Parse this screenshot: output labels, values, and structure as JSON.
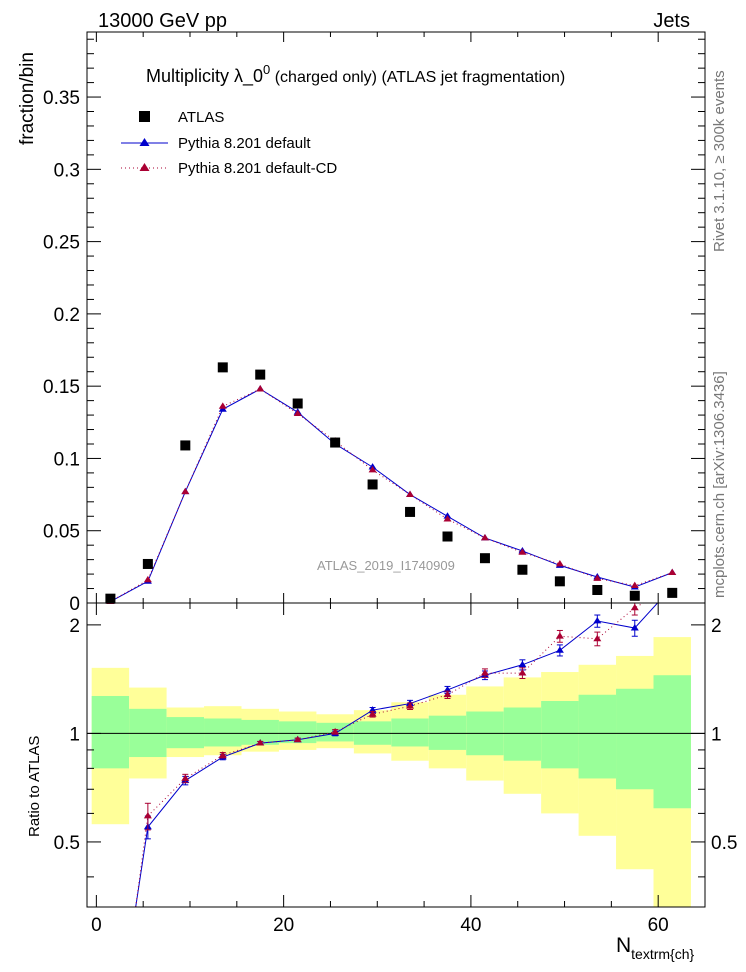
{
  "header": {
    "left": "13000 GeV pp",
    "right": "Jets"
  },
  "side_labels": {
    "rivet": "Rivet 3.1.10, ≥ 300k events",
    "mcplots": "mcplots.cern.ch [arXiv:1306.3436]"
  },
  "watermark": "ATLAS_2019_I1740909",
  "chart_data": {
    "type": "scatter",
    "title": "Multiplicity  λ_0⁰ (charged only) (ATLAS jet fragmentation)",
    "title_main": "Multiplicity  λ_0",
    "title_sup": "0",
    "title_tail": " (charged only) (ATLAS jet fragmentation)",
    "xlabel": "N",
    "xlabel_sub": "textrm{ch}",
    "ylabel": "fraction/bin",
    "ratio_ylabel": "Ratio to ATLAS",
    "xlim": [
      -1,
      65
    ],
    "ylim": [
      0,
      0.395
    ],
    "ratio_ylim": [
      0.33,
      2.3
    ],
    "x_ticks": [
      0,
      20,
      40,
      60
    ],
    "y_ticks": [
      0,
      0.05,
      0.1,
      0.15,
      0.2,
      0.25,
      0.3,
      0.35
    ],
    "y_tick_labels": [
      "0",
      "0.05",
      "0.1",
      "0.15",
      "0.2",
      "0.25",
      "0.3",
      "0.35"
    ],
    "ratio_ticks": [
      0.5,
      1,
      2
    ],
    "ratio_tick_labels": [
      "0.5",
      "1",
      "2"
    ],
    "legend_position": "top-left",
    "bin_edges": [
      -0.5,
      3.5,
      7.5,
      11.5,
      15.5,
      19.5,
      23.5,
      27.5,
      31.5,
      35.5,
      39.5,
      43.5,
      47.5,
      51.5,
      55.5,
      59.5,
      63.5
    ],
    "x": [
      1.5,
      5.5,
      9.5,
      13.5,
      17.5,
      21.5,
      25.5,
      29.5,
      33.5,
      37.5,
      41.5,
      45.5,
      49.5,
      53.5,
      57.5,
      61.5
    ],
    "series": [
      {
        "name": "ATLAS",
        "color": "#000000",
        "marker": "square",
        "values": [
          0.003,
          0.027,
          0.109,
          0.163,
          0.158,
          0.138,
          0.111,
          0.082,
          0.063,
          0.046,
          0.031,
          0.023,
          0.015,
          0.009,
          0.005,
          0.007
        ]
      },
      {
        "name": "Pythia 8.201 default",
        "color": "#0000cc",
        "marker": "triangle",
        "line": "solid",
        "values": [
          0.001,
          0.015,
          0.077,
          0.134,
          0.148,
          0.132,
          0.11,
          0.094,
          0.075,
          0.06,
          0.045,
          0.036,
          0.026,
          0.018,
          0.011,
          0.021
        ],
        "ratio": [
          0.33,
          0.55,
          0.74,
          0.86,
          0.94,
          0.96,
          1.0,
          1.16,
          1.21,
          1.32,
          1.45,
          1.55,
          1.7,
          2.05,
          1.96,
          2.55
        ],
        "ratio_err": [
          0,
          0.04,
          0.02,
          0.015,
          0.01,
          0.01,
          0.015,
          0.02,
          0.025,
          0.03,
          0.04,
          0.05,
          0.06,
          0.08,
          0.1,
          0.15
        ]
      },
      {
        "name": "Pythia 8.201 default-CD",
        "color": "#aa0033",
        "marker": "triangle",
        "line": "dotted",
        "values": [
          0.001,
          0.016,
          0.077,
          0.136,
          0.148,
          0.131,
          0.112,
          0.092,
          0.075,
          0.058,
          0.045,
          0.035,
          0.027,
          0.017,
          0.012,
          0.021
        ],
        "ratio": [
          0.33,
          0.59,
          0.75,
          0.87,
          0.94,
          0.96,
          1.01,
          1.13,
          1.19,
          1.28,
          1.47,
          1.47,
          1.86,
          1.83,
          2.23,
          2.55
        ],
        "ratio_err": [
          0,
          0.05,
          0.02,
          0.015,
          0.01,
          0.01,
          0.015,
          0.02,
          0.025,
          0.03,
          0.04,
          0.05,
          0.07,
          0.08,
          0.1,
          0.15
        ]
      }
    ],
    "uncertainty_bands": {
      "inner_color": "#99ff99",
      "outer_color": "#ffff99",
      "inner_lo": [
        0.8,
        0.86,
        0.91,
        0.92,
        0.93,
        0.94,
        0.95,
        0.93,
        0.92,
        0.9,
        0.87,
        0.84,
        0.8,
        0.75,
        0.7,
        0.62
      ],
      "inner_hi": [
        1.27,
        1.17,
        1.11,
        1.1,
        1.09,
        1.08,
        1.07,
        1.08,
        1.1,
        1.12,
        1.15,
        1.18,
        1.23,
        1.28,
        1.33,
        1.45
      ],
      "outer_lo": [
        0.56,
        0.75,
        0.86,
        0.87,
        0.89,
        0.9,
        0.91,
        0.88,
        0.84,
        0.8,
        0.74,
        0.68,
        0.6,
        0.52,
        0.42,
        0.33
      ],
      "outer_hi": [
        1.52,
        1.34,
        1.18,
        1.19,
        1.17,
        1.15,
        1.13,
        1.16,
        1.22,
        1.28,
        1.35,
        1.43,
        1.48,
        1.55,
        1.64,
        1.85
      ]
    }
  }
}
